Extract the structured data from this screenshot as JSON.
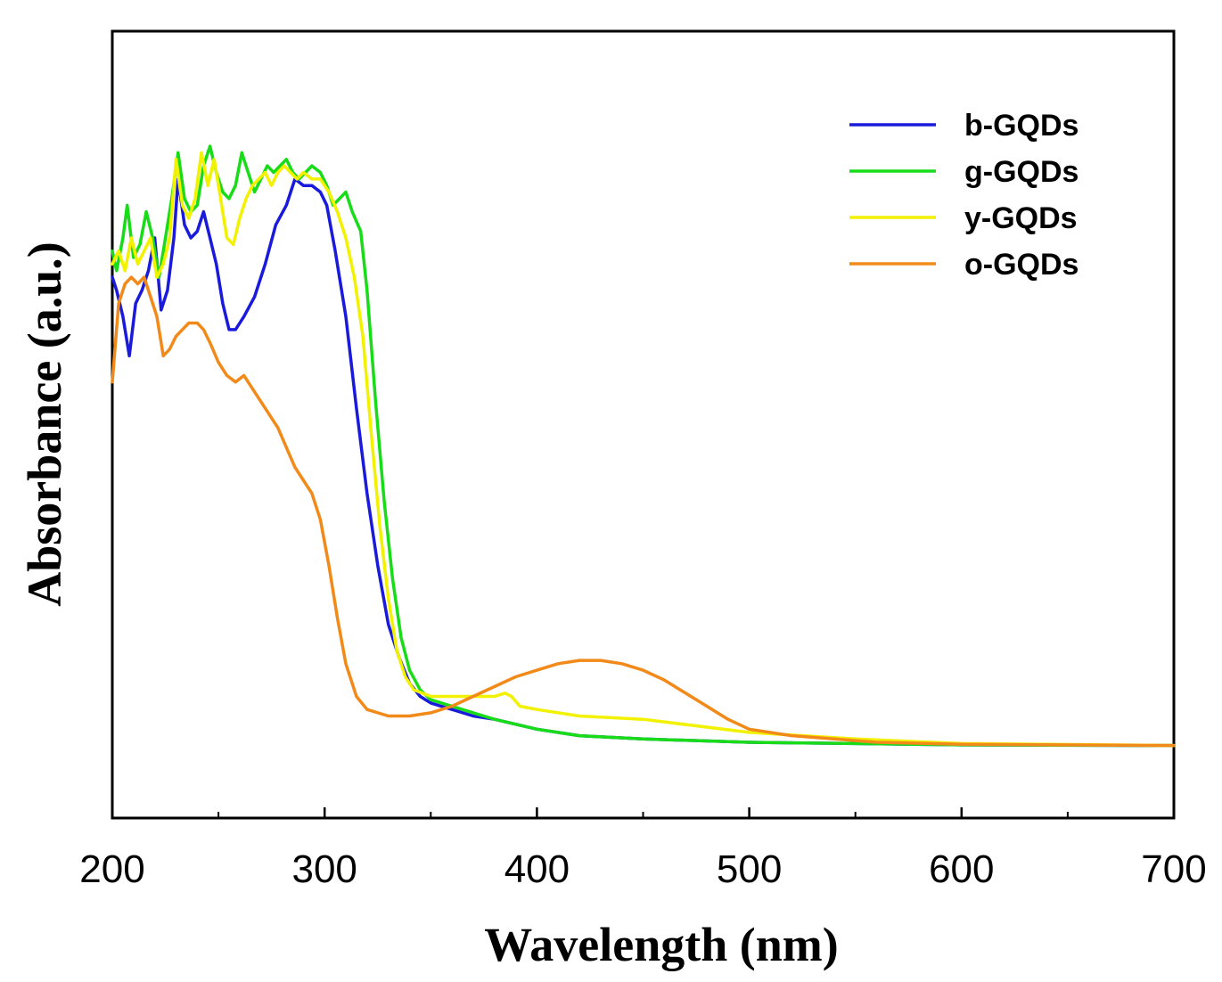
{
  "chart_data": {
    "type": "line",
    "title": "",
    "xlabel": "Wavelength (nm)",
    "ylabel": "Absorbance (a.u.)",
    "xlim": [
      200,
      700
    ],
    "ylim": [
      0,
      1.0
    ],
    "x_ticks": [
      200,
      300,
      400,
      500,
      600,
      700
    ],
    "x_minor_ticks": [
      250,
      350,
      450,
      550,
      650
    ],
    "y_ticks_shown": false,
    "grid": false,
    "legend_position": "top-right",
    "series": [
      {
        "name": "b-GQDs",
        "color": "#1a1adc",
        "points": [
          [
            200,
            0.74
          ],
          [
            202,
            0.72
          ],
          [
            205,
            0.68
          ],
          [
            208,
            0.62
          ],
          [
            211,
            0.7
          ],
          [
            214,
            0.72
          ],
          [
            217,
            0.75
          ],
          [
            220,
            0.8
          ],
          [
            223,
            0.69
          ],
          [
            226,
            0.72
          ],
          [
            229,
            0.8
          ],
          [
            231,
            0.89
          ],
          [
            234,
            0.82
          ],
          [
            237,
            0.8
          ],
          [
            240,
            0.81
          ],
          [
            243,
            0.84
          ],
          [
            246,
            0.8
          ],
          [
            249,
            0.76
          ],
          [
            252,
            0.7
          ],
          [
            255,
            0.66
          ],
          [
            258,
            0.66
          ],
          [
            262,
            0.68
          ],
          [
            267,
            0.71
          ],
          [
            272,
            0.76
          ],
          [
            277,
            0.82
          ],
          [
            282,
            0.85
          ],
          [
            286,
            0.89
          ],
          [
            290,
            0.88
          ],
          [
            294,
            0.88
          ],
          [
            298,
            0.87
          ],
          [
            301,
            0.85
          ],
          [
            305,
            0.78
          ],
          [
            310,
            0.68
          ],
          [
            315,
            0.54
          ],
          [
            320,
            0.41
          ],
          [
            325,
            0.3
          ],
          [
            330,
            0.21
          ],
          [
            335,
            0.16
          ],
          [
            340,
            0.12
          ],
          [
            345,
            0.1
          ],
          [
            350,
            0.09
          ],
          [
            360,
            0.08
          ],
          [
            370,
            0.07
          ],
          [
            380,
            0.065
          ],
          [
            400,
            0.05
          ],
          [
            420,
            0.04
          ],
          [
            450,
            0.035
          ],
          [
            500,
            0.03
          ],
          [
            550,
            0.028
          ],
          [
            600,
            0.026
          ],
          [
            700,
            0.025
          ]
        ]
      },
      {
        "name": "g-GQDs",
        "color": "#19dc19",
        "points": [
          [
            200,
            0.78
          ],
          [
            202,
            0.75
          ],
          [
            205,
            0.8
          ],
          [
            207,
            0.85
          ],
          [
            210,
            0.77
          ],
          [
            213,
            0.79
          ],
          [
            216,
            0.84
          ],
          [
            219,
            0.8
          ],
          [
            222,
            0.74
          ],
          [
            225,
            0.8
          ],
          [
            228,
            0.86
          ],
          [
            231,
            0.93
          ],
          [
            234,
            0.86
          ],
          [
            237,
            0.84
          ],
          [
            240,
            0.85
          ],
          [
            243,
            0.91
          ],
          [
            246,
            0.94
          ],
          [
            249,
            0.9
          ],
          [
            252,
            0.87
          ],
          [
            255,
            0.86
          ],
          [
            258,
            0.88
          ],
          [
            261,
            0.93
          ],
          [
            264,
            0.9
          ],
          [
            267,
            0.87
          ],
          [
            270,
            0.89
          ],
          [
            273,
            0.91
          ],
          [
            276,
            0.9
          ],
          [
            279,
            0.91
          ],
          [
            282,
            0.92
          ],
          [
            285,
            0.9
          ],
          [
            288,
            0.89
          ],
          [
            291,
            0.9
          ],
          [
            294,
            0.91
          ],
          [
            298,
            0.9
          ],
          [
            301,
            0.88
          ],
          [
            304,
            0.85
          ],
          [
            307,
            0.86
          ],
          [
            310,
            0.87
          ],
          [
            313,
            0.84
          ],
          [
            317,
            0.81
          ],
          [
            320,
            0.72
          ],
          [
            324,
            0.55
          ],
          [
            328,
            0.4
          ],
          [
            332,
            0.28
          ],
          [
            336,
            0.19
          ],
          [
            340,
            0.14
          ],
          [
            345,
            0.11
          ],
          [
            350,
            0.095
          ],
          [
            360,
            0.085
          ],
          [
            370,
            0.075
          ],
          [
            380,
            0.065
          ],
          [
            400,
            0.05
          ],
          [
            420,
            0.04
          ],
          [
            450,
            0.035
          ],
          [
            500,
            0.03
          ],
          [
            550,
            0.028
          ],
          [
            600,
            0.026
          ],
          [
            700,
            0.025
          ]
        ]
      },
      {
        "name": "y-GQDs",
        "color": "#f2f200",
        "points": [
          [
            200,
            0.76
          ],
          [
            203,
            0.78
          ],
          [
            206,
            0.75
          ],
          [
            209,
            0.8
          ],
          [
            212,
            0.76
          ],
          [
            215,
            0.78
          ],
          [
            218,
            0.8
          ],
          [
            221,
            0.74
          ],
          [
            224,
            0.76
          ],
          [
            227,
            0.8
          ],
          [
            230,
            0.92
          ],
          [
            233,
            0.85
          ],
          [
            236,
            0.83
          ],
          [
            239,
            0.86
          ],
          [
            242,
            0.93
          ],
          [
            245,
            0.88
          ],
          [
            248,
            0.92
          ],
          [
            251,
            0.86
          ],
          [
            254,
            0.8
          ],
          [
            257,
            0.79
          ],
          [
            260,
            0.83
          ],
          [
            263,
            0.86
          ],
          [
            266,
            0.88
          ],
          [
            269,
            0.89
          ],
          [
            272,
            0.9
          ],
          [
            275,
            0.88
          ],
          [
            278,
            0.9
          ],
          [
            281,
            0.91
          ],
          [
            284,
            0.9
          ],
          [
            287,
            0.89
          ],
          [
            290,
            0.9
          ],
          [
            294,
            0.89
          ],
          [
            298,
            0.89
          ],
          [
            302,
            0.87
          ],
          [
            306,
            0.84
          ],
          [
            310,
            0.8
          ],
          [
            314,
            0.74
          ],
          [
            318,
            0.65
          ],
          [
            322,
            0.5
          ],
          [
            326,
            0.36
          ],
          [
            330,
            0.25
          ],
          [
            334,
            0.17
          ],
          [
            338,
            0.13
          ],
          [
            342,
            0.11
          ],
          [
            350,
            0.1
          ],
          [
            360,
            0.1
          ],
          [
            370,
            0.1
          ],
          [
            380,
            0.1
          ],
          [
            385,
            0.105
          ],
          [
            388,
            0.1
          ],
          [
            392,
            0.085
          ],
          [
            400,
            0.08
          ],
          [
            420,
            0.07
          ],
          [
            450,
            0.065
          ],
          [
            500,
            0.045
          ],
          [
            550,
            0.035
          ],
          [
            600,
            0.028
          ],
          [
            700,
            0.025
          ]
        ]
      },
      {
        "name": "o-GQDs",
        "color": "#f28a1a",
        "points": [
          [
            200,
            0.58
          ],
          [
            203,
            0.7
          ],
          [
            206,
            0.73
          ],
          [
            209,
            0.74
          ],
          [
            212,
            0.73
          ],
          [
            215,
            0.74
          ],
          [
            218,
            0.71
          ],
          [
            221,
            0.68
          ],
          [
            224,
            0.62
          ],
          [
            227,
            0.63
          ],
          [
            230,
            0.65
          ],
          [
            233,
            0.66
          ],
          [
            236,
            0.67
          ],
          [
            240,
            0.67
          ],
          [
            243,
            0.66
          ],
          [
            246,
            0.64
          ],
          [
            250,
            0.61
          ],
          [
            254,
            0.59
          ],
          [
            258,
            0.58
          ],
          [
            262,
            0.59
          ],
          [
            266,
            0.57
          ],
          [
            270,
            0.55
          ],
          [
            274,
            0.53
          ],
          [
            278,
            0.51
          ],
          [
            282,
            0.48
          ],
          [
            286,
            0.45
          ],
          [
            290,
            0.43
          ],
          [
            294,
            0.41
          ],
          [
            298,
            0.37
          ],
          [
            302,
            0.3
          ],
          [
            306,
            0.22
          ],
          [
            310,
            0.15
          ],
          [
            315,
            0.1
          ],
          [
            320,
            0.08
          ],
          [
            330,
            0.07
          ],
          [
            340,
            0.07
          ],
          [
            350,
            0.075
          ],
          [
            360,
            0.085
          ],
          [
            370,
            0.1
          ],
          [
            380,
            0.115
          ],
          [
            390,
            0.13
          ],
          [
            400,
            0.14
          ],
          [
            410,
            0.15
          ],
          [
            420,
            0.155
          ],
          [
            430,
            0.155
          ],
          [
            440,
            0.15
          ],
          [
            450,
            0.14
          ],
          [
            460,
            0.125
          ],
          [
            470,
            0.105
          ],
          [
            480,
            0.085
          ],
          [
            490,
            0.065
          ],
          [
            500,
            0.05
          ],
          [
            520,
            0.04
          ],
          [
            540,
            0.035
          ],
          [
            560,
            0.03
          ],
          [
            600,
            0.027
          ],
          [
            700,
            0.025
          ]
        ]
      }
    ]
  }
}
